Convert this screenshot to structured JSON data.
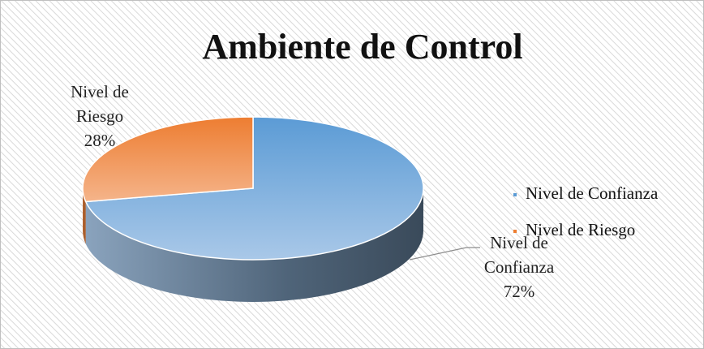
{
  "chart_data": {
    "type": "pie",
    "title": "Ambiente de Control",
    "categories": [
      "Nivel de Confianza",
      "Nivel de Riesgo"
    ],
    "values": [
      72,
      28
    ],
    "value_labels": [
      "72%",
      "28%"
    ],
    "colors": [
      "#5b9bd5",
      "#ed7d31"
    ],
    "legend": "right"
  }
}
